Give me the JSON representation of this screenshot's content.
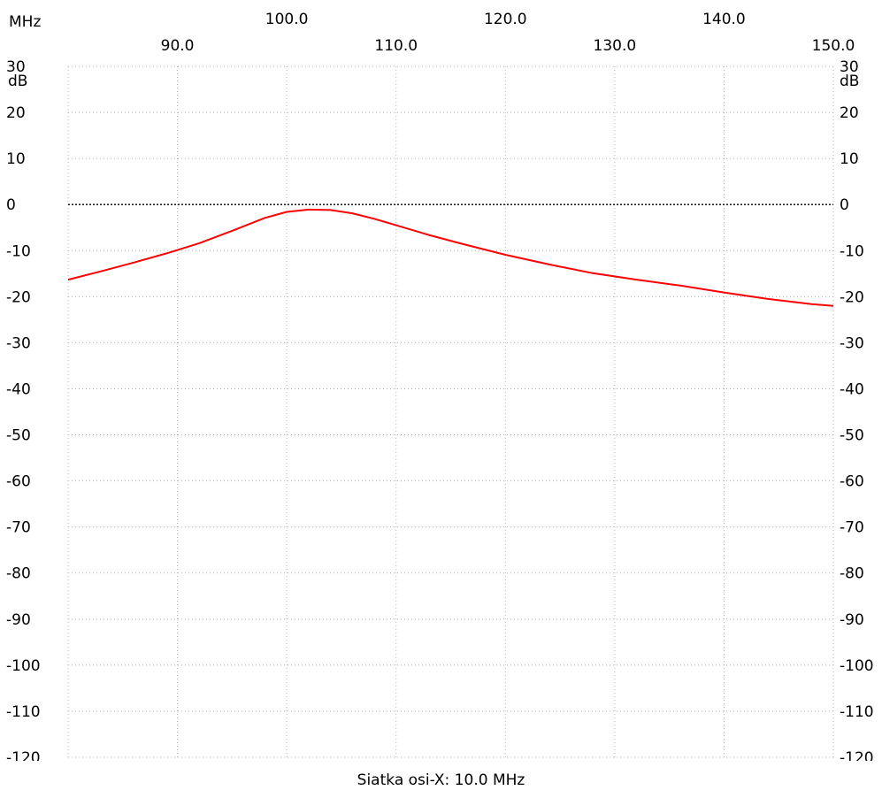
{
  "chart_data": {
    "type": "line",
    "x_unit": "MHz",
    "y_unit": "dB",
    "xlim": [
      80.0,
      150.0
    ],
    "ylim": [
      -120,
      30
    ],
    "x_ticks_upper": [
      "100.0",
      "120.0",
      "140.0"
    ],
    "x_ticks_lower": [
      "90.0",
      "110.0",
      "130.0",
      "150.0"
    ],
    "y_ticks": [
      "30",
      "20",
      "10",
      "0",
      "-10",
      "-20",
      "-30",
      "-40",
      "-50",
      "-60",
      "-70",
      "-80",
      "-90",
      "-100",
      "-110",
      "-120"
    ],
    "grid": true,
    "reference_line_y": 0,
    "series": [
      {
        "color": "#ff0000",
        "x": [
          80,
          83,
          86,
          89,
          92,
          95,
          98,
          100,
          102,
          104,
          106,
          108,
          110,
          113,
          116,
          120,
          124,
          128,
          132,
          136,
          140,
          144,
          148,
          150
        ],
        "y": [
          -16.3,
          -14.5,
          -12.6,
          -10.6,
          -8.4,
          -5.7,
          -2.9,
          -1.6,
          -1.1,
          -1.2,
          -1.9,
          -3.1,
          -4.5,
          -6.6,
          -8.5,
          -10.9,
          -13.0,
          -14.9,
          -16.3,
          -17.6,
          -19.1,
          -20.5,
          -21.6,
          -22.0
        ]
      }
    ]
  },
  "footer": {
    "text": "Siatka osi-X: 10.0 MHz"
  }
}
